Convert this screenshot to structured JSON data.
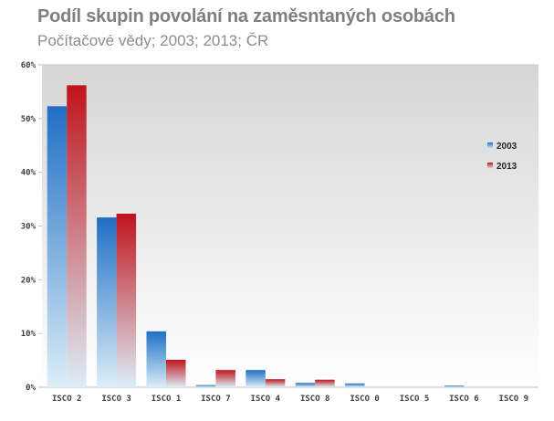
{
  "chart_data": {
    "type": "bar",
    "title": "Podíl skupin povolání na zaměsntaných osobách",
    "subtitle": "Počítačové vědy; 2003; 2013; ČR",
    "xlabel": "",
    "ylabel": "",
    "categories": [
      "ISCO 2",
      "ISCO 3",
      "ISCO 1",
      "ISCO 7",
      "ISCO 4",
      "ISCO 8",
      "ISCO 0",
      "ISCO 5",
      "ISCO 6",
      "ISCO 9"
    ],
    "series": [
      {
        "name": "2003",
        "color": "#1f6fc5",
        "values": [
          52.3,
          31.6,
          10.4,
          0.4,
          3.2,
          0.8,
          0.7,
          0.0,
          0.3,
          0.0
        ]
      },
      {
        "name": "2013",
        "color": "#c0141c",
        "values": [
          56.2,
          32.3,
          5.1,
          3.2,
          1.5,
          1.4,
          0.0,
          0.0,
          0.0,
          0.0
        ]
      }
    ],
    "ylim": [
      0,
      60
    ],
    "yticks": [
      0,
      10,
      20,
      30,
      40,
      50,
      60
    ],
    "ytick_labels": [
      "0%",
      "10%",
      "20%",
      "30%",
      "40%",
      "50%",
      "60%"
    ],
    "legend_position": "right",
    "grid": false
  }
}
